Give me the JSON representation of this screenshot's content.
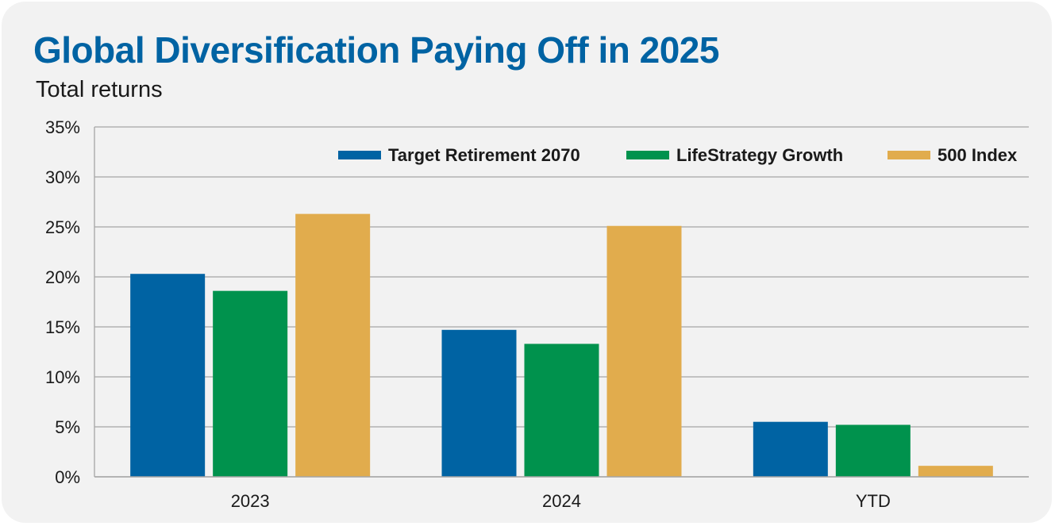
{
  "title": "Global Diversification Paying Off in 2025",
  "subtitle": "Total returns",
  "chart_data": {
    "type": "bar",
    "categories": [
      "2023",
      "2024",
      "YTD"
    ],
    "series": [
      {
        "name": "Target Retirement 2070",
        "color": "#0063a3",
        "values": [
          20.3,
          14.7,
          5.5
        ]
      },
      {
        "name": "LifeStrategy Growth",
        "color": "#00924d",
        "values": [
          18.6,
          13.3,
          5.2
        ]
      },
      {
        "name": "500 Index",
        "color": "#e1ac4d",
        "values": [
          26.3,
          25.1,
          1.1
        ]
      }
    ],
    "yticks": [
      "0%",
      "5%",
      "10%",
      "15%",
      "20%",
      "25%",
      "30%",
      "35%"
    ],
    "ylim": [
      0,
      35
    ],
    "grid": true,
    "legend_position": "top-right"
  }
}
